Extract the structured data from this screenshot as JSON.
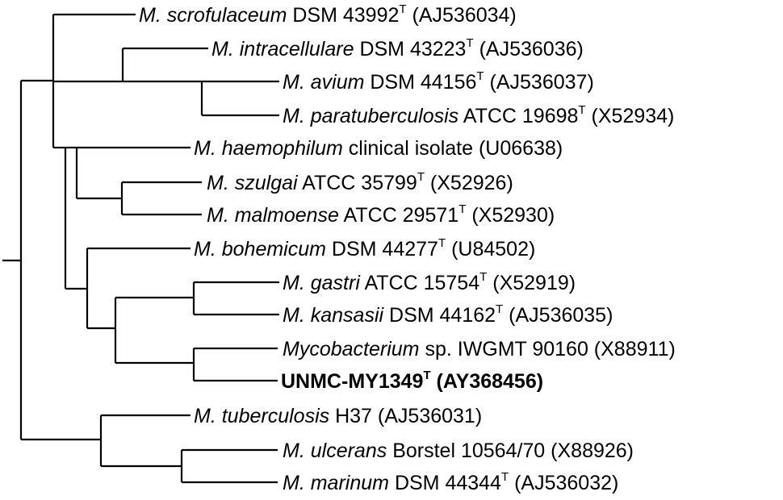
{
  "tree": {
    "leaves": [
      {
        "id": "scrofulaceum",
        "genus": "M.",
        "species": "scrofulaceum",
        "strain": "DSM 43992",
        "type_strain": true,
        "accession": "(AJ536034)",
        "bold": false
      },
      {
        "id": "intracellulare",
        "genus": "M.",
        "species": "intracellulare",
        "strain": "DSM 43223",
        "type_strain": true,
        "accession": "(AJ536036)",
        "bold": false
      },
      {
        "id": "avium",
        "genus": "M.",
        "species": "avium",
        "strain": "DSM 44156",
        "type_strain": true,
        "accession": "(AJ536037)",
        "bold": false
      },
      {
        "id": "paratuberculosis",
        "genus": "M.",
        "species": "paratuberculosis",
        "strain": "ATCC 19698",
        "type_strain": true,
        "accession": "(X52934)",
        "bold": false
      },
      {
        "id": "haemophilum",
        "genus": "M.",
        "species": "haemophilum",
        "strain": "clinical isolate",
        "type_strain": false,
        "accession": "(U06638)",
        "bold": false
      },
      {
        "id": "szulgai",
        "genus": "M.",
        "species": "szulgai",
        "strain": "ATCC 35799",
        "type_strain": true,
        "accession": "(X52926)",
        "bold": false
      },
      {
        "id": "malmoense",
        "genus": "M.",
        "species": "malmoense",
        "strain": "ATCC 29571",
        "type_strain": true,
        "accession": "(X52930)",
        "bold": false
      },
      {
        "id": "bohemicum",
        "genus": "M.",
        "species": "bohemicum",
        "strain": "DSM 44277",
        "type_strain": true,
        "accession": "(U84502)",
        "bold": false
      },
      {
        "id": "gastri",
        "genus": "M.",
        "species": "gastri",
        "strain": "ATCC 15754",
        "type_strain": true,
        "accession": "(X52919)",
        "bold": false
      },
      {
        "id": "kansasii",
        "genus": "M.",
        "species": "kansasii",
        "strain": "DSM 44162",
        "type_strain": true,
        "accession": "(AJ536035)",
        "bold": false
      },
      {
        "id": "iwgmt",
        "genus": "Mycobacterium",
        "species": "",
        "strain": "sp. IWGMT 90160",
        "type_strain": false,
        "accession": "(X88911)",
        "bold": false
      },
      {
        "id": "unmc",
        "genus": "",
        "species": "",
        "strain": "UNMC-MY1349",
        "type_strain": true,
        "accession": "(AY368456)",
        "bold": true
      },
      {
        "id": "tuberculosis",
        "genus": "M.",
        "species": "tuberculosis",
        "strain": "H37",
        "type_strain": false,
        "accession": "(AJ536031)",
        "bold": false
      },
      {
        "id": "ulcerans",
        "genus": "M.",
        "species": "ulcerans",
        "strain": "Borstel 10564/70",
        "type_strain": false,
        "accession": "(X88926)",
        "bold": false
      },
      {
        "id": "marinum",
        "genus": "M.",
        "species": "marinum",
        "strain": "DSM 44344",
        "type_strain": true,
        "accession": "(AJ536032)",
        "bold": false
      }
    ],
    "type_marker": "T"
  }
}
